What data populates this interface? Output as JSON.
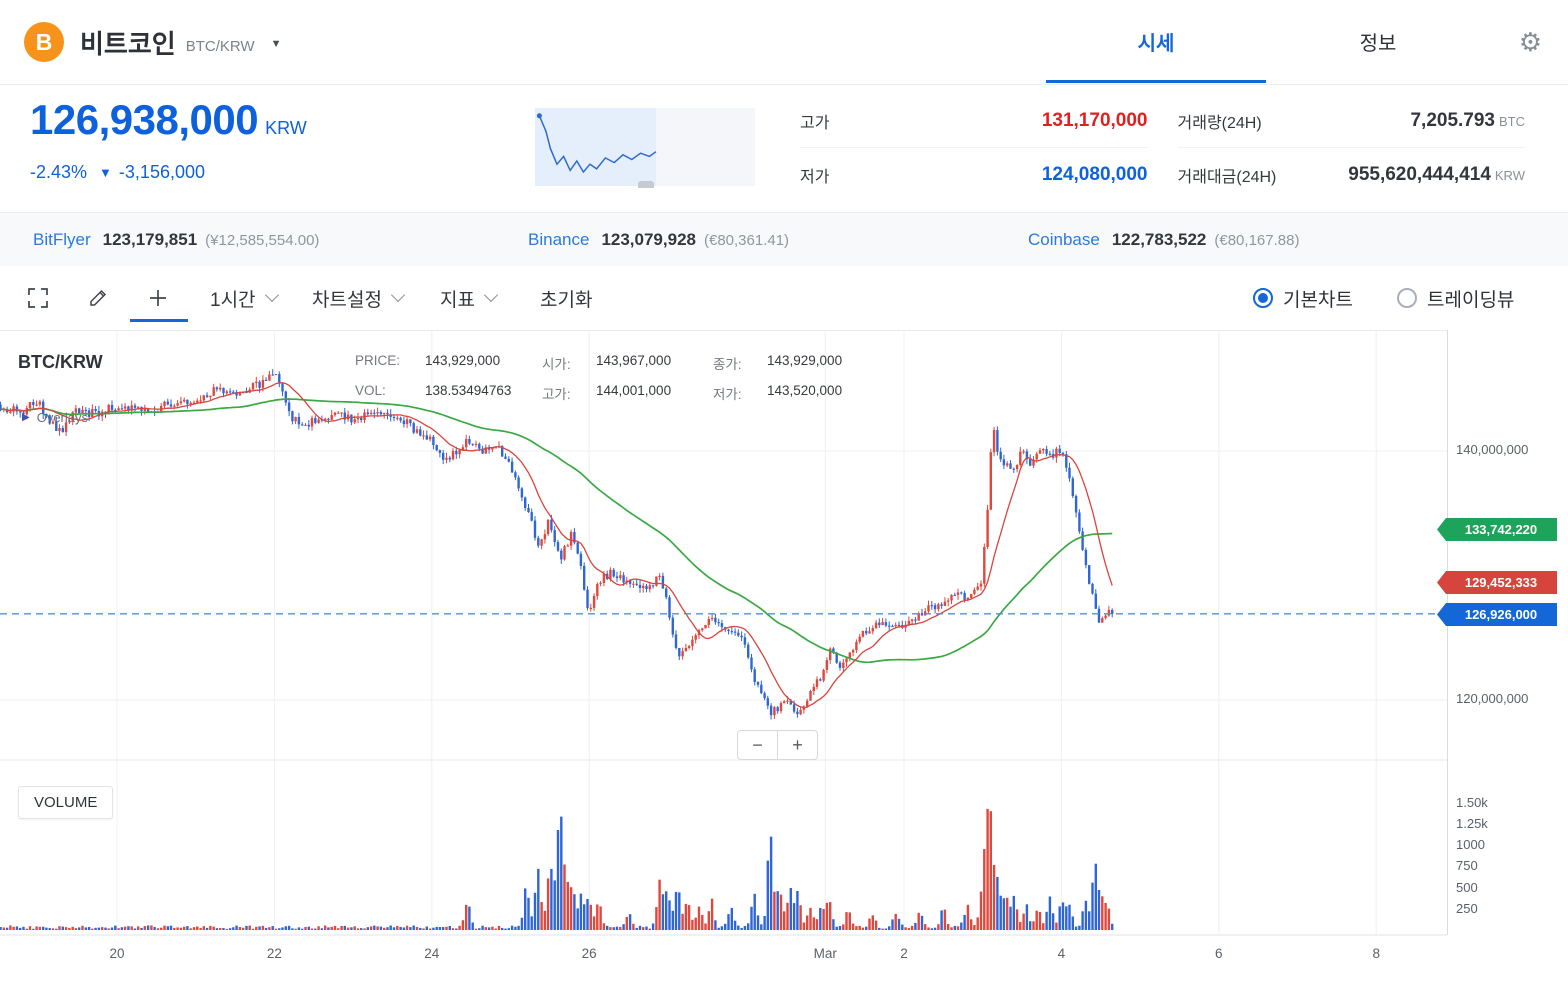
{
  "icons": {
    "bitcoin": "B",
    "dropdown": "▼",
    "gear": "⚙",
    "overlays_arrow": "▶",
    "zoom_out": "−",
    "zoom_in": "+"
  },
  "header": {
    "coin_name": "비트코인",
    "pair": "BTC/KRW",
    "tabs": {
      "quotes": "시세",
      "info": "정보"
    }
  },
  "summary": {
    "price": "126,938,000",
    "currency": "KRW",
    "change_percent": "-2.43%",
    "change_arrow": "▼",
    "change_amount": "-3,156,000",
    "high_label": "고가",
    "high_value": "131,170,000",
    "low_label": "저가",
    "low_value": "124,080,000",
    "volume_label": "거래량(24H)",
    "volume_value": "7,205.793",
    "volume_unit": "BTC",
    "turnover_label": "거래대금(24H)",
    "turnover_value": "955,620,444,414",
    "turnover_unit": "KRW"
  },
  "exchanges": [
    {
      "name": "BitFlyer",
      "price": "123,179,851",
      "converted": "(¥12,585,554.00)"
    },
    {
      "name": "Binance",
      "price": "123,079,928",
      "converted": "(€80,361.41)"
    },
    {
      "name": "Coinbase",
      "price": "122,783,522",
      "converted": "(€80,167.88)"
    }
  ],
  "toolbar": {
    "interval": "1시간",
    "chart_settings": "차트설정",
    "indicators": "지표",
    "reset": "초기화",
    "basic_chart": "기본차트",
    "tradingview": "트레이딩뷰"
  },
  "chart": {
    "pair_label": "BTC/KRW",
    "overlays_label": "Overlays",
    "volume_pane_label": "VOLUME",
    "info": {
      "price_label": "PRICE:",
      "price_value": "143,929,000",
      "vol_label": "VOL:",
      "vol_value": "138.53494763",
      "open_label": "시가:",
      "open_value": "143,967,000",
      "high_label": "고가:",
      "high_value": "144,001,000",
      "close_label": "종가:",
      "close_value": "143,929,000",
      "low_label": "저가:",
      "low_value": "143,520,000"
    }
  },
  "chart_data": {
    "type": "candlestick",
    "pair": "BTC/KRW",
    "interval": "1시간",
    "up_color": "#e0473d",
    "down_color": "#2e66d6",
    "ma_short": {
      "period": 12,
      "color": "#d9453c",
      "last_value": 129452333
    },
    "ma_long": {
      "period": 60,
      "color": "#3aa943",
      "last_value": 133742220
    },
    "current_price": {
      "value": 126926000,
      "label": "126,926,000",
      "color": "#1467d6"
    },
    "price_labels": [
      {
        "value": 140000000,
        "label": "140,000,000"
      },
      {
        "value": 120000000,
        "label": "120,000,000"
      }
    ],
    "badges": [
      {
        "value": 133742220,
        "label": "133,742,220",
        "color": "#1ea35b"
      },
      {
        "value": 129452333,
        "label": "129,452,333",
        "color": "#d5443d"
      },
      {
        "value": 126926000,
        "label": "126,926,000",
        "color": "#1467d6"
      }
    ],
    "volume_ticks": [
      {
        "value": 1500,
        "label": "1.50k"
      },
      {
        "value": 1250,
        "label": "1.25k"
      },
      {
        "value": 1000,
        "label": "1000"
      },
      {
        "value": 750,
        "label": "750"
      },
      {
        "value": 500,
        "label": "500"
      },
      {
        "value": 250,
        "label": "250"
      }
    ],
    "x_ticks": [
      {
        "day": 20,
        "label": "20"
      },
      {
        "day": 22,
        "label": "22"
      },
      {
        "day": 24,
        "label": "24"
      },
      {
        "day": 26,
        "label": "26"
      },
      {
        "day": 29,
        "label": "Mar"
      },
      {
        "day": 30,
        "label": "2"
      },
      {
        "day": 32,
        "label": "4"
      },
      {
        "day": 34,
        "label": "6"
      },
      {
        "day": 36,
        "label": "8"
      }
    ],
    "start_day": 18.52,
    "end_day": 32.66,
    "candles_per_day": 24,
    "price_anchors_m": [
      [
        18.5,
        143.6
      ],
      [
        18.75,
        143.1
      ],
      [
        19.0,
        144.0
      ],
      [
        19.15,
        142.2
      ],
      [
        19.3,
        141.6
      ],
      [
        19.45,
        143.4
      ],
      [
        19.7,
        143.0
      ],
      [
        20.0,
        143.6
      ],
      [
        20.35,
        143.2
      ],
      [
        20.7,
        143.9
      ],
      [
        21.0,
        144.3
      ],
      [
        21.3,
        145.0
      ],
      [
        21.55,
        144.5
      ],
      [
        21.8,
        145.4
      ],
      [
        22.0,
        146.2
      ],
      [
        22.1,
        144.6
      ],
      [
        22.2,
        142.6
      ],
      [
        22.4,
        142.1
      ],
      [
        22.65,
        142.9
      ],
      [
        23.0,
        142.6
      ],
      [
        23.35,
        143.0
      ],
      [
        23.65,
        142.4
      ],
      [
        24.0,
        140.7
      ],
      [
        24.2,
        139.2
      ],
      [
        24.45,
        140.9
      ],
      [
        24.65,
        139.9
      ],
      [
        24.85,
        140.4
      ],
      [
        25.05,
        138.0
      ],
      [
        25.2,
        135.5
      ],
      [
        25.35,
        132.5
      ],
      [
        25.5,
        134.5
      ],
      [
        25.62,
        131.2
      ],
      [
        25.78,
        133.4
      ],
      [
        25.9,
        130.5
      ],
      [
        26.0,
        126.8
      ],
      [
        26.12,
        129.6
      ],
      [
        26.3,
        130.3
      ],
      [
        26.5,
        129.4
      ],
      [
        26.7,
        129.0
      ],
      [
        26.9,
        129.8
      ],
      [
        27.0,
        127.5
      ],
      [
        27.12,
        123.4
      ],
      [
        27.25,
        124.2
      ],
      [
        27.4,
        125.6
      ],
      [
        27.55,
        126.4
      ],
      [
        27.75,
        125.3
      ],
      [
        27.95,
        124.9
      ],
      [
        28.1,
        121.5
      ],
      [
        28.3,
        118.9
      ],
      [
        28.5,
        119.9
      ],
      [
        28.65,
        118.8
      ],
      [
        28.8,
        120.3
      ],
      [
        28.95,
        122.0
      ],
      [
        29.05,
        123.9
      ],
      [
        29.2,
        122.7
      ],
      [
        29.35,
        124.3
      ],
      [
        29.5,
        125.5
      ],
      [
        29.7,
        126.3
      ],
      [
        29.9,
        125.7
      ],
      [
        30.1,
        126.2
      ],
      [
        30.3,
        127.3
      ],
      [
        30.5,
        127.9
      ],
      [
        30.7,
        128.4
      ],
      [
        30.85,
        128.3
      ],
      [
        30.98,
        129.3
      ],
      [
        31.06,
        135.0
      ],
      [
        31.12,
        142.3
      ],
      [
        31.18,
        140.0
      ],
      [
        31.28,
        139.0
      ],
      [
        31.38,
        138.4
      ],
      [
        31.5,
        139.9
      ],
      [
        31.62,
        139.0
      ],
      [
        31.75,
        140.1
      ],
      [
        31.88,
        139.6
      ],
      [
        32.0,
        140.2
      ],
      [
        32.08,
        138.4
      ],
      [
        32.18,
        135.0
      ],
      [
        32.3,
        131.3
      ],
      [
        32.42,
        127.6
      ],
      [
        32.5,
        125.9
      ],
      [
        32.58,
        127.4
      ],
      [
        32.66,
        126.9
      ]
    ],
    "volume_spikes": [
      [
        24.45,
        360
      ],
      [
        25.2,
        500
      ],
      [
        25.35,
        840
      ],
      [
        25.5,
        900
      ],
      [
        25.62,
        1560
      ],
      [
        25.7,
        640
      ],
      [
        25.78,
        540
      ],
      [
        25.9,
        480
      ],
      [
        26.0,
        420
      ],
      [
        26.12,
        320
      ],
      [
        26.5,
        180
      ],
      [
        26.9,
        600
      ],
      [
        27.0,
        480
      ],
      [
        27.12,
        520
      ],
      [
        27.25,
        400
      ],
      [
        27.4,
        330
      ],
      [
        27.55,
        360
      ],
      [
        27.8,
        260
      ],
      [
        28.1,
        430
      ],
      [
        28.3,
        1230
      ],
      [
        28.42,
        540
      ],
      [
        28.55,
        500
      ],
      [
        28.65,
        430
      ],
      [
        28.8,
        300
      ],
      [
        28.95,
        330
      ],
      [
        29.05,
        420
      ],
      [
        29.3,
        260
      ],
      [
        29.6,
        200
      ],
      [
        29.9,
        180
      ],
      [
        30.2,
        200
      ],
      [
        30.5,
        260
      ],
      [
        30.8,
        300
      ],
      [
        30.98,
        340
      ],
      [
        31.06,
        1540
      ],
      [
        31.12,
        880
      ],
      [
        31.2,
        600
      ],
      [
        31.3,
        460
      ],
      [
        31.4,
        380
      ],
      [
        31.55,
        300
      ],
      [
        31.7,
        280
      ],
      [
        31.85,
        420
      ],
      [
        32.0,
        360
      ],
      [
        32.1,
        300
      ],
      [
        32.3,
        320
      ],
      [
        32.42,
        840
      ],
      [
        32.5,
        400
      ],
      [
        32.58,
        300
      ]
    ],
    "sparkline": [
      [
        0.02,
        0.1
      ],
      [
        0.05,
        0.3
      ],
      [
        0.07,
        0.52
      ],
      [
        0.1,
        0.72
      ],
      [
        0.13,
        0.62
      ],
      [
        0.16,
        0.8
      ],
      [
        0.19,
        0.68
      ],
      [
        0.22,
        0.82
      ],
      [
        0.25,
        0.72
      ],
      [
        0.28,
        0.78
      ],
      [
        0.32,
        0.64
      ],
      [
        0.36,
        0.7
      ],
      [
        0.4,
        0.6
      ],
      [
        0.44,
        0.66
      ],
      [
        0.48,
        0.58
      ],
      [
        0.52,
        0.62
      ],
      [
        0.55,
        0.56
      ]
    ]
  }
}
